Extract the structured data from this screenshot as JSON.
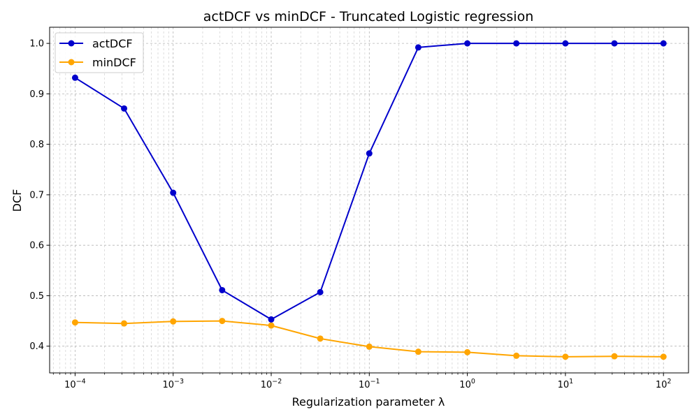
{
  "chart_data": {
    "type": "line",
    "title": "actDCF vs minDCF - Truncated Logistic regression",
    "xlabel": "Regularization parameter λ",
    "ylabel": "DCF",
    "x_scale": "log",
    "xlim": [
      5.5e-05,
      180
    ],
    "ylim": [
      0.347,
      1.032
    ],
    "x": [
      0.0001,
      0.000316,
      0.001,
      0.00316,
      0.01,
      0.0316,
      0.1,
      0.316,
      1,
      3.16,
      10,
      31.6,
      100
    ],
    "x_ticks": [
      {
        "value": 0.0001,
        "base": "10",
        "exp": "−4"
      },
      {
        "value": 0.001,
        "base": "10",
        "exp": "−3"
      },
      {
        "value": 0.01,
        "base": "10",
        "exp": "−2"
      },
      {
        "value": 0.1,
        "base": "10",
        "exp": "−1"
      },
      {
        "value": 1,
        "base": "10",
        "exp": "0"
      },
      {
        "value": 10,
        "base": "10",
        "exp": "1"
      },
      {
        "value": 100,
        "base": "10",
        "exp": "2"
      }
    ],
    "y_ticks": [
      "0.4",
      "0.5",
      "0.6",
      "0.7",
      "0.8",
      "0.9",
      "1.0"
    ],
    "grid": "major and minor, dashed",
    "legend_position": "top-left",
    "series": [
      {
        "name": "actDCF",
        "color": "#0000cc",
        "values": [
          0.932,
          0.871,
          0.704,
          0.511,
          0.453,
          0.507,
          0.782,
          0.992,
          1.0,
          1.0,
          1.0,
          1.0,
          1.0
        ]
      },
      {
        "name": "minDCF",
        "color": "#ffa500",
        "values": [
          0.447,
          0.445,
          0.449,
          0.45,
          0.441,
          0.415,
          0.399,
          0.389,
          0.388,
          0.381,
          0.379,
          0.38,
          0.379
        ]
      }
    ]
  }
}
